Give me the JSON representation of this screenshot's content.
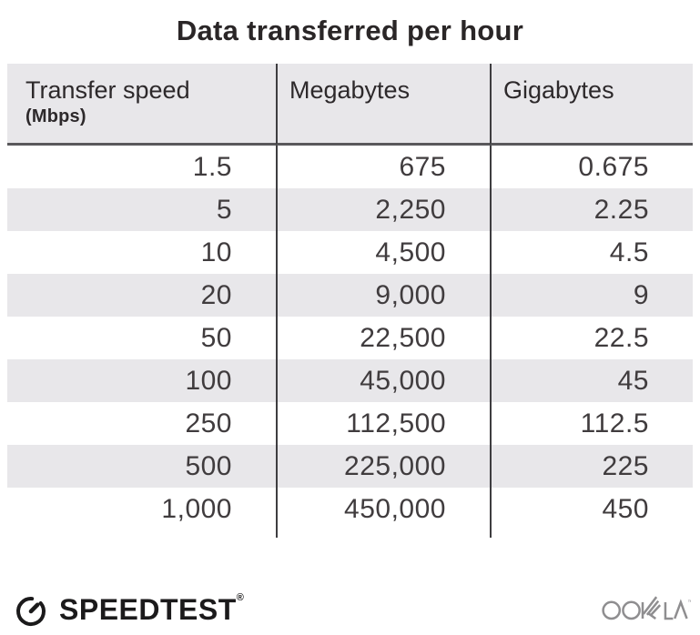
{
  "title": "Data transferred per hour",
  "table": {
    "columns": [
      {
        "label": "Transfer speed",
        "sublabel": "(Mbps)"
      },
      {
        "label": "Megabytes",
        "sublabel": ""
      },
      {
        "label": "Gigabytes",
        "sublabel": ""
      }
    ],
    "rows": [
      [
        "1.5",
        "675",
        "0.675"
      ],
      [
        "5",
        "2,250",
        "2.25"
      ],
      [
        "10",
        "4,500",
        "4.5"
      ],
      [
        "20",
        "9,000",
        "9"
      ],
      [
        "50",
        "22,500",
        "22.5"
      ],
      [
        "100",
        "45,000",
        "45"
      ],
      [
        "250",
        "112,500",
        "112.5"
      ],
      [
        "500",
        "225,000",
        "225"
      ],
      [
        "1,000",
        "450,000",
        "450"
      ]
    ]
  },
  "footer": {
    "speedtest_label": "SPEEDTEST",
    "speedtest_mark": "®",
    "ookla_label": "OOKLA",
    "ookla_mark": "™"
  },
  "colors": {
    "background": "#ffffff",
    "header_and_alt_row": "#e8e7ea",
    "divider": "#3e3d40",
    "header_underline": "#59585b",
    "text": "#2b2728",
    "speedtest_brand": "#1b1a1b",
    "ookla_gray": "#8f8e90"
  },
  "chart_data": {
    "type": "table",
    "title": "Data transferred per hour",
    "columns": [
      "Transfer speed (Mbps)",
      "Megabytes",
      "Gigabytes"
    ],
    "rows": [
      [
        1.5,
        675,
        0.675
      ],
      [
        5,
        2250,
        2.25
      ],
      [
        10,
        4500,
        4.5
      ],
      [
        20,
        9000,
        9
      ],
      [
        50,
        22500,
        22.5
      ],
      [
        100,
        45000,
        45
      ],
      [
        250,
        112500,
        112.5
      ],
      [
        500,
        225000,
        225
      ],
      [
        1000,
        450000,
        450
      ]
    ]
  }
}
